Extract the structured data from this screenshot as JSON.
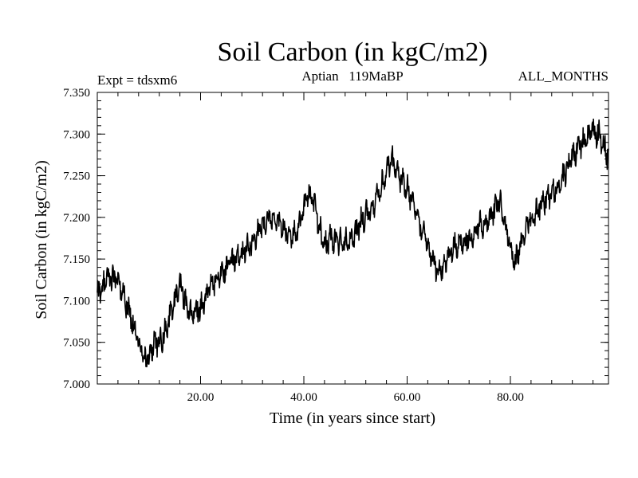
{
  "chart_data": {
    "type": "line",
    "title": "Soil Carbon (in kgC/m2)",
    "subtitle": "Aptian   119MaBP",
    "left_annotation": "Expt = tdsxm6",
    "right_annotation": "ALL_MONTHS",
    "xlabel": "Time (in years since start)",
    "ylabel": "Soil Carbon (in kgC/m2)",
    "xlim": [
      0,
      99
    ],
    "ylim": [
      7.0,
      7.35
    ],
    "x_ticks": [
      20,
      40,
      60,
      80
    ],
    "x_tick_labels": [
      "20.00",
      "40.00",
      "60.00",
      "80.00"
    ],
    "y_ticks": [
      7.0,
      7.05,
      7.1,
      7.15,
      7.2,
      7.25,
      7.3,
      7.35
    ],
    "y_tick_labels": [
      "7.000",
      "7.050",
      "7.100",
      "7.150",
      "7.200",
      "7.250",
      "7.300",
      "7.350"
    ],
    "x_minor_step": 4,
    "y_minor_step": 0.01,
    "grid": false,
    "line_color": "#000000",
    "series": [
      {
        "name": "Soil Carbon",
        "sampling": "monthly",
        "trend_anchor_years": [
          0,
          1,
          2,
          4,
          6,
          8,
          9,
          10,
          11,
          12,
          13,
          14,
          15,
          16,
          17,
          18,
          20,
          22,
          25,
          28,
          30,
          32,
          33,
          35,
          37,
          38,
          40,
          41,
          42,
          43,
          44,
          45,
          47,
          49,
          51,
          53,
          55,
          56,
          57,
          58,
          60,
          62,
          64,
          66,
          67,
          68,
          70,
          72,
          74,
          76,
          77,
          78,
          79,
          80,
          81,
          82,
          84,
          86,
          88,
          90,
          92,
          94,
          95,
          96,
          97,
          98,
          99
        ],
        "trend_anchor_values": [
          7.105,
          7.115,
          7.13,
          7.125,
          7.09,
          7.05,
          7.035,
          7.03,
          7.05,
          7.05,
          7.06,
          7.08,
          7.1,
          7.12,
          7.1,
          7.085,
          7.09,
          7.12,
          7.14,
          7.155,
          7.17,
          7.19,
          7.2,
          7.195,
          7.18,
          7.175,
          7.21,
          7.23,
          7.215,
          7.19,
          7.165,
          7.175,
          7.17,
          7.17,
          7.195,
          7.21,
          7.235,
          7.26,
          7.27,
          7.255,
          7.235,
          7.2,
          7.165,
          7.135,
          7.14,
          7.155,
          7.17,
          7.175,
          7.19,
          7.2,
          7.21,
          7.22,
          7.19,
          7.165,
          7.145,
          7.17,
          7.2,
          7.215,
          7.23,
          7.245,
          7.275,
          7.29,
          7.3,
          7.305,
          7.3,
          7.29,
          7.27
        ],
        "monthly_noise_amplitude": 0.013
      }
    ]
  }
}
